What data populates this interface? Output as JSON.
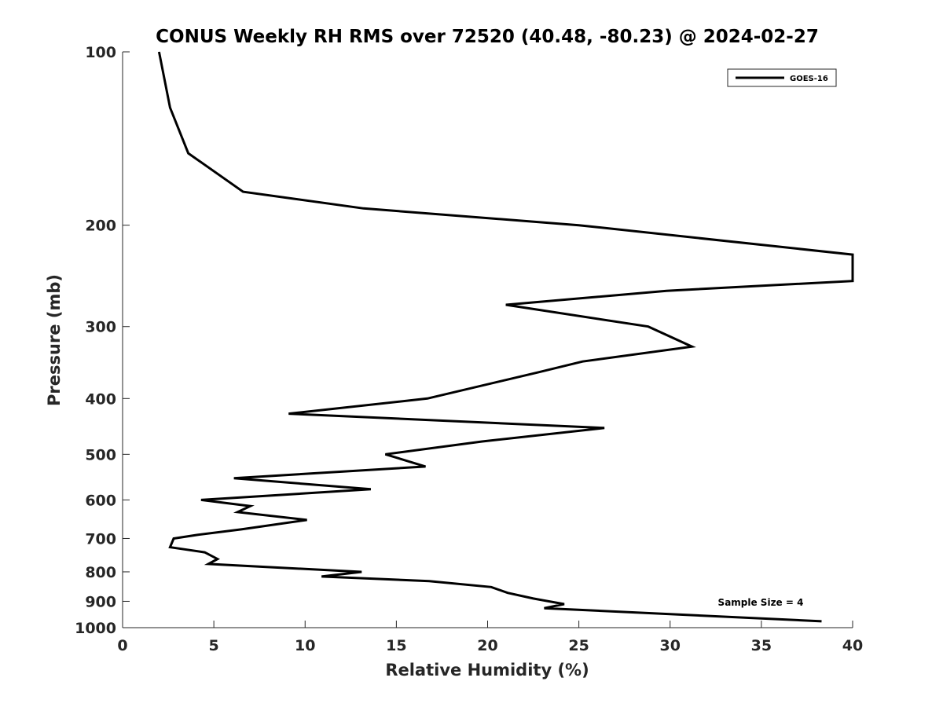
{
  "chart_data": {
    "type": "line",
    "title": "CONUS Weekly RH RMS over 72520 (40.48, -80.23) @ 2024-02-27",
    "xlabel": "Relative Humidity (%)",
    "ylabel": "Pressure (mb)",
    "xlim": [
      0,
      40
    ],
    "ylim": [
      100,
      1000
    ],
    "y_scale": "log",
    "y_reversed": true,
    "x_ticks": [
      0,
      5,
      10,
      15,
      20,
      25,
      30,
      35,
      40
    ],
    "x_tick_labels": [
      "0",
      "5",
      "10",
      "15",
      "20",
      "25",
      "30",
      "35",
      "40"
    ],
    "y_ticks": [
      100,
      200,
      300,
      400,
      500,
      600,
      700,
      800,
      900,
      1000
    ],
    "y_tick_labels": [
      "100",
      "200",
      "300",
      "400",
      "500",
      "600",
      "700",
      "800",
      "900",
      "1000"
    ],
    "grid": false,
    "legend_position": "top-right",
    "annotation": "Sample Size = 4",
    "series": [
      {
        "name": "GOES-16",
        "color": "#000000",
        "points": [
          [
            2.0,
            100
          ],
          [
            2.6,
            125
          ],
          [
            3.6,
            150
          ],
          [
            6.6,
            175
          ],
          [
            13.2,
            187
          ],
          [
            25.0,
            200
          ],
          [
            40.0,
            225
          ],
          [
            40.0,
            250
          ],
          [
            29.8,
            260
          ],
          [
            21.0,
            275
          ],
          [
            28.8,
            300
          ],
          [
            31.2,
            325
          ],
          [
            25.2,
            345
          ],
          [
            22.8,
            360
          ],
          [
            16.7,
            400
          ],
          [
            9.1,
            425
          ],
          [
            26.4,
            450
          ],
          [
            19.7,
            475
          ],
          [
            14.4,
            500
          ],
          [
            16.6,
            525
          ],
          [
            6.1,
            550
          ],
          [
            13.6,
            575
          ],
          [
            4.3,
            600
          ],
          [
            7.0,
            615
          ],
          [
            6.3,
            630
          ],
          [
            10.1,
            650
          ],
          [
            6.5,
            675
          ],
          [
            4.1,
            690
          ],
          [
            2.8,
            700
          ],
          [
            2.6,
            725
          ],
          [
            4.5,
            740
          ],
          [
            5.2,
            760
          ],
          [
            4.7,
            775
          ],
          [
            13.1,
            800
          ],
          [
            10.9,
            815
          ],
          [
            16.8,
            830
          ],
          [
            20.2,
            850
          ],
          [
            21.1,
            870
          ],
          [
            22.5,
            890
          ],
          [
            24.2,
            910
          ],
          [
            23.1,
            925
          ],
          [
            38.3,
            975
          ]
        ]
      }
    ]
  }
}
